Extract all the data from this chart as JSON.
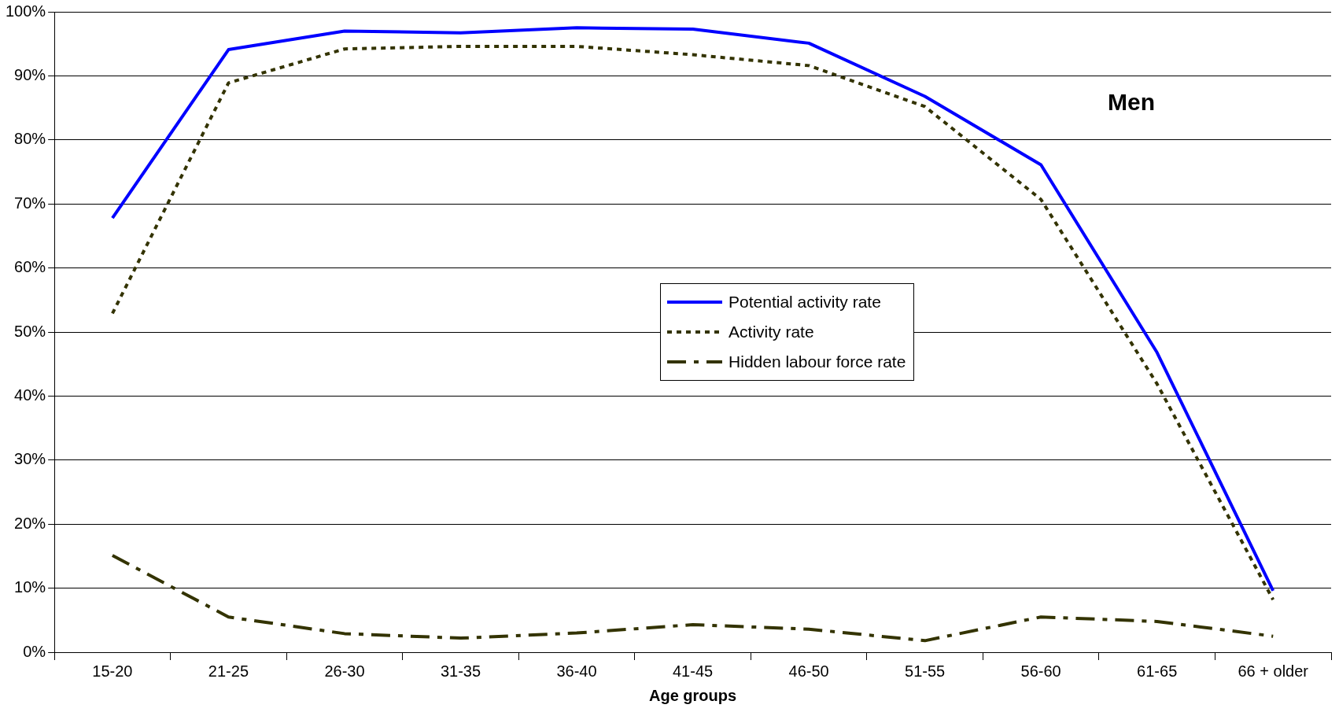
{
  "chart_data": {
    "type": "line",
    "xlabel": "Age groups",
    "annotations": [
      "Men"
    ],
    "categories": [
      "15-20",
      "21-25",
      "26-30",
      "31-35",
      "36-40",
      "41-45",
      "46-50",
      "51-55",
      "56-60",
      "61-65",
      "66 + older"
    ],
    "series": [
      {
        "name": "Potential activity rate",
        "color": "#0000ff",
        "line_style": "solid",
        "values": [
          67.8,
          94.1,
          97.0,
          96.7,
          97.5,
          97.3,
          95.1,
          86.8,
          76.1,
          46.8,
          9.6
        ]
      },
      {
        "name": "Activity rate",
        "color": "#333300",
        "line_style": "dotted",
        "values": [
          52.9,
          88.9,
          94.2,
          94.6,
          94.6,
          93.3,
          91.6,
          85.2,
          70.7,
          41.9,
          8.2
        ]
      },
      {
        "name": "Hidden labour force rate",
        "color": "#333300",
        "line_style": "dashed",
        "values": [
          15.1,
          5.5,
          2.9,
          2.2,
          3.0,
          4.3,
          3.6,
          1.8,
          5.5,
          4.8,
          2.5
        ]
      }
    ],
    "ylim": [
      0,
      100
    ],
    "yticks": [
      {
        "value": 0,
        "label": "0%"
      },
      {
        "value": 10,
        "label": "10%"
      },
      {
        "value": 20,
        "label": "20%"
      },
      {
        "value": 30,
        "label": "30%"
      },
      {
        "value": 40,
        "label": "40%"
      },
      {
        "value": 50,
        "label": "50%"
      },
      {
        "value": 60,
        "label": "60%"
      },
      {
        "value": 70,
        "label": "70%"
      },
      {
        "value": 80,
        "label": "80%"
      },
      {
        "value": 90,
        "label": "90%"
      },
      {
        "value": 100,
        "label": "100%"
      }
    ],
    "grid": "y",
    "legend": "center",
    "marker": "none"
  }
}
